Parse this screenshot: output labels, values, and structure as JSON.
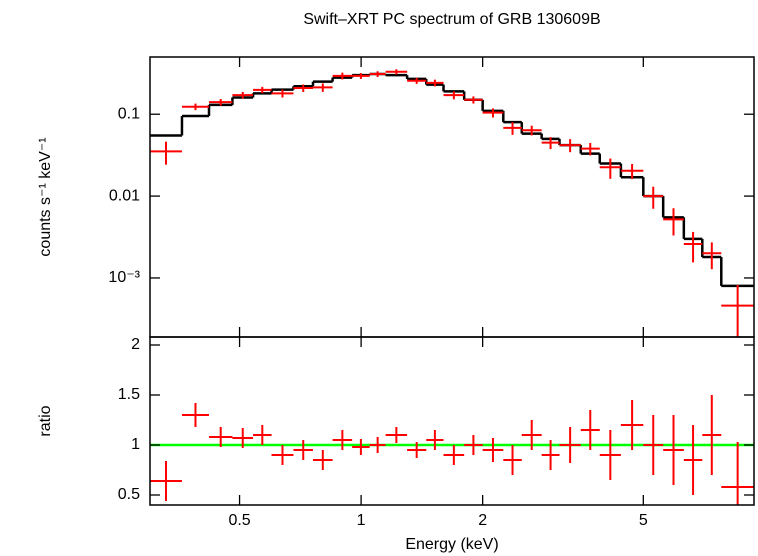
{
  "chart_data": [
    {
      "type": "spectrum",
      "title": "Swift–XRT PC spectrum of GRB 130609B",
      "ylabel": "counts s⁻¹ keV⁻¹",
      "x_low": [
        0.3,
        0.36,
        0.42,
        0.48,
        0.54,
        0.6,
        0.68,
        0.76,
        0.85,
        0.95,
        1.05,
        1.15,
        1.3,
        1.45,
        1.6,
        1.8,
        2.0,
        2.25,
        2.5,
        2.8,
        3.1,
        3.5,
        3.9,
        4.4,
        5.0,
        5.6,
        6.3,
        7.0,
        7.8
      ],
      "x_high": [
        0.36,
        0.42,
        0.48,
        0.54,
        0.6,
        0.68,
        0.76,
        0.85,
        0.95,
        1.05,
        1.15,
        1.3,
        1.45,
        1.6,
        1.8,
        2.0,
        2.25,
        2.5,
        2.8,
        3.1,
        3.5,
        3.9,
        4.4,
        5.0,
        5.6,
        6.3,
        7.0,
        7.8,
        9.4
      ],
      "values": [
        0.0352,
        0.1235,
        0.1404,
        0.1712,
        0.198,
        0.18,
        0.209,
        0.2125,
        0.294,
        0.294,
        0.31,
        0.33,
        0.2565,
        0.2415,
        0.171,
        0.15,
        0.1045,
        0.068,
        0.0638,
        0.045,
        0.042,
        0.038,
        0.0225,
        0.0204,
        0.01,
        0.0052,
        0.0026,
        0.002,
        0.00046
      ],
      "errors": [
        0.011,
        0.0114,
        0.013,
        0.016,
        0.018,
        0.02,
        0.022,
        0.025,
        0.028,
        0.024,
        0.0248,
        0.024,
        0.0216,
        0.023,
        0.019,
        0.015,
        0.0132,
        0.012,
        0.0087,
        0.0075,
        0.0076,
        0.0066,
        0.00625,
        0.00425,
        0.003,
        0.0019,
        0.00105,
        0.00072,
        0.00036
      ],
      "model": [
        0.055,
        0.095,
        0.13,
        0.16,
        0.18,
        0.2,
        0.22,
        0.25,
        0.28,
        0.3,
        0.31,
        0.3,
        0.27,
        0.23,
        0.19,
        0.15,
        0.11,
        0.08,
        0.058,
        0.05,
        0.042,
        0.033,
        0.025,
        0.017,
        0.01,
        0.0055,
        0.003,
        0.0018,
        0.0008
      ],
      "color": "#ff0000",
      "model_color": "#000000",
      "xlim": [
        0.3,
        9.4
      ],
      "ylim": [
        0.00019,
        0.5
      ],
      "xscale": "log",
      "yscale": "log",
      "yticks": [
        {
          "value": 0.001,
          "label": "10⁻³"
        },
        0.01,
        0.1
      ]
    },
    {
      "type": "ratio",
      "ylabel": "ratio",
      "xlabel": "Energy (keV)",
      "x_low": [
        0.3,
        0.36,
        0.42,
        0.48,
        0.54,
        0.6,
        0.68,
        0.76,
        0.85,
        0.95,
        1.05,
        1.15,
        1.3,
        1.45,
        1.6,
        1.8,
        2.0,
        2.25,
        2.5,
        2.8,
        3.1,
        3.5,
        3.9,
        4.4,
        5.0,
        5.6,
        6.3,
        7.0,
        7.8
      ],
      "x_high": [
        0.36,
        0.42,
        0.48,
        0.54,
        0.6,
        0.68,
        0.76,
        0.85,
        0.95,
        1.05,
        1.15,
        1.3,
        1.45,
        1.6,
        1.8,
        2.0,
        2.25,
        2.5,
        2.8,
        3.1,
        3.5,
        3.9,
        4.4,
        5.0,
        5.6,
        6.3,
        7.0,
        7.8,
        9.4
      ],
      "values": [
        0.64,
        1.3,
        1.08,
        1.07,
        1.1,
        0.9,
        0.95,
        0.85,
        1.05,
        0.98,
        1.0,
        1.1,
        0.95,
        1.05,
        0.9,
        1.0,
        0.95,
        0.85,
        1.1,
        0.9,
        1.0,
        1.15,
        0.9,
        1.2,
        1.0,
        0.95,
        0.85,
        1.1,
        0.58
      ],
      "errors": [
        0.2,
        0.12,
        0.1,
        0.1,
        0.1,
        0.1,
        0.1,
        0.1,
        0.1,
        0.08,
        0.08,
        0.08,
        0.08,
        0.1,
        0.1,
        0.1,
        0.12,
        0.15,
        0.15,
        0.15,
        0.18,
        0.2,
        0.25,
        0.25,
        0.3,
        0.35,
        0.35,
        0.4,
        0.45
      ],
      "color": "#ff0000",
      "reference_line": 1,
      "reference_color": "#00ff00",
      "xlim": [
        0.3,
        9.4
      ],
      "ylim": [
        0.4,
        2.08
      ],
      "xscale": "log",
      "xticks": [
        0.5,
        1,
        2,
        5
      ],
      "yticks": [
        0.5,
        1,
        1.5,
        2
      ]
    }
  ]
}
